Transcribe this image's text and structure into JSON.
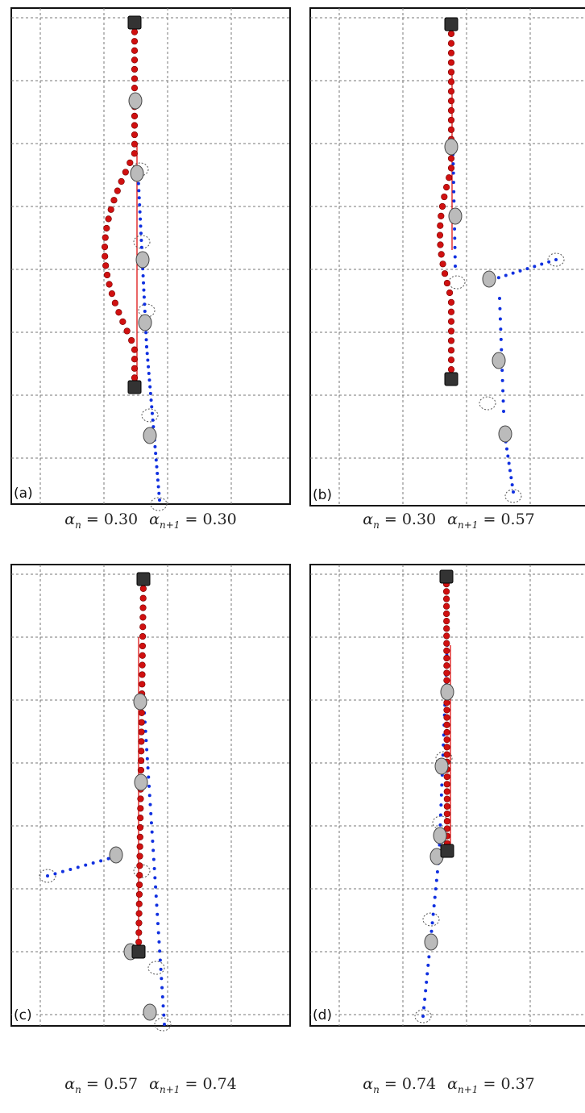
{
  "panels": [
    {
      "label": "(a)",
      "caption": {
        "symbol1": "α",
        "sub1": "n",
        "eq1": "=",
        "value1": "0.30",
        "symbol2": "α",
        "sub2": "n+1",
        "eq2": "=",
        "value2": "0.30"
      }
    },
    {
      "label": "(b)",
      "caption": {
        "symbol1": "α",
        "sub1": "n",
        "eq1": "=",
        "value1": "0.30",
        "symbol2": "α",
        "sub2": "n+1",
        "eq2": "=",
        "value2": "0.57"
      }
    },
    {
      "label": "(c)",
      "caption": {
        "symbol1": "α",
        "sub1": "n",
        "eq1": "=",
        "value1": "0.57",
        "symbol2": "α",
        "sub2": "n+1",
        "eq2": "=",
        "value2": "0.74"
      }
    },
    {
      "label": "(d)",
      "caption": {
        "symbol1": "α",
        "sub1": "n",
        "eq1": "=",
        "value1": "0.74",
        "symbol2": "α",
        "sub2": "n+1",
        "eq2": "=",
        "value2": "0.37"
      }
    }
  ]
}
